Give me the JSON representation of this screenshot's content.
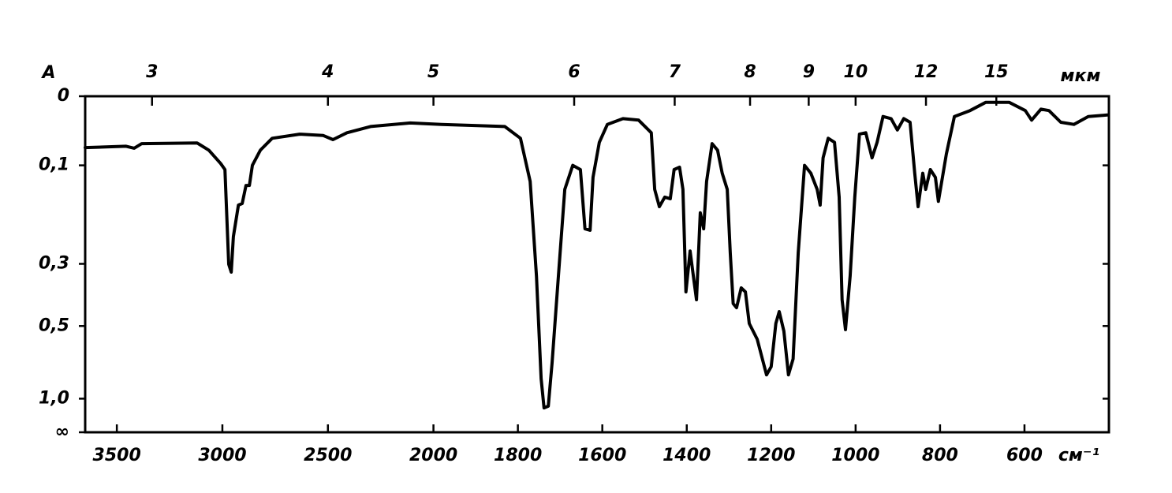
{
  "chart_data": {
    "type": "line",
    "ylabel": "A",
    "xlabel": "см⁻¹",
    "x2label": "мкм",
    "color": "#000000",
    "y_scale": "transmittance-linear",
    "ylim": [
      0,
      null
    ],
    "yticks": [
      0,
      {
        "value": 0.1,
        "label": "0,1"
      },
      {
        "value": 0.3,
        "label": "0,3"
      },
      {
        "value": 0.5,
        "label": "0,5"
      },
      {
        "value": 1.0,
        "label": "1,0"
      },
      {
        "value": null,
        "label": "∞"
      }
    ],
    "xlim": [
      3650,
      400
    ],
    "x_scale_break": 2000,
    "x_scale_ratio": 2,
    "xticks": [
      3500,
      3000,
      2500,
      2000,
      1800,
      1600,
      1400,
      1200,
      1000,
      800,
      600
    ],
    "x2ticks": [
      3,
      4,
      5,
      6,
      7,
      8,
      9,
      10,
      12,
      15
    ],
    "x": [
      3650,
      3456,
      3418,
      3382,
      3120,
      3064,
      3008,
      2988,
      2970,
      2958,
      2948,
      2924,
      2906,
      2888,
      2872,
      2858,
      2820,
      2764,
      2634,
      2522,
      2476,
      2410,
      2298,
      2110,
      1981,
      1831,
      1794,
      1771,
      1756,
      1745,
      1738,
      1728,
      1719,
      1704,
      1689,
      1670,
      1652,
      1641,
      1629,
      1622,
      1607,
      1588,
      1551,
      1514,
      1484,
      1476,
      1465,
      1452,
      1439,
      1430,
      1417,
      1409,
      1402,
      1392,
      1383,
      1377,
      1368,
      1360,
      1353,
      1340,
      1327,
      1316,
      1304,
      1297,
      1290,
      1282,
      1271,
      1261,
      1252,
      1233,
      1211,
      1200,
      1189,
      1181,
      1170,
      1159,
      1148,
      1136,
      1121,
      1106,
      1091,
      1084,
      1077,
      1065,
      1050,
      1039,
      1032,
      1024,
      1013,
      1002,
      991,
      976,
      961,
      949,
      935,
      916,
      901,
      886,
      871,
      860,
      852,
      841,
      834,
      823,
      811,
      804,
      785,
      766,
      729,
      692,
      636,
      598,
      583,
      561,
      542,
      514,
      483,
      449,
      404
    ],
    "values": [
      0.072,
      0.07,
      0.073,
      0.066,
      0.065,
      0.076,
      0.097,
      0.107,
      0.301,
      0.322,
      0.235,
      0.17,
      0.167,
      0.134,
      0.134,
      0.1,
      0.076,
      0.058,
      0.052,
      0.054,
      0.06,
      0.05,
      0.041,
      0.036,
      0.038,
      0.041,
      0.058,
      0.127,
      0.333,
      0.797,
      1.14,
      1.11,
      0.685,
      0.333,
      0.141,
      0.1,
      0.107,
      0.218,
      0.221,
      0.12,
      0.064,
      0.038,
      0.03,
      0.032,
      0.05,
      0.141,
      0.173,
      0.155,
      0.158,
      0.107,
      0.103,
      0.141,
      0.379,
      0.268,
      0.344,
      0.404,
      0.185,
      0.218,
      0.127,
      0.066,
      0.076,
      0.113,
      0.141,
      0.272,
      0.417,
      0.431,
      0.367,
      0.379,
      0.49,
      0.558,
      0.767,
      0.71,
      0.49,
      0.445,
      0.522,
      0.767,
      0.661,
      0.272,
      0.1,
      0.113,
      0.141,
      0.17,
      0.088,
      0.058,
      0.064,
      0.155,
      0.404,
      0.515,
      0.333,
      0.155,
      0.052,
      0.05,
      0.088,
      0.064,
      0.027,
      0.03,
      0.046,
      0.03,
      0.035,
      0.113,
      0.173,
      0.113,
      0.141,
      0.107,
      0.12,
      0.163,
      0.082,
      0.027,
      0.019,
      0.008,
      0.008,
      0.019,
      0.032,
      0.017,
      0.019,
      0.035,
      0.038,
      0.027,
      0.025
    ]
  }
}
